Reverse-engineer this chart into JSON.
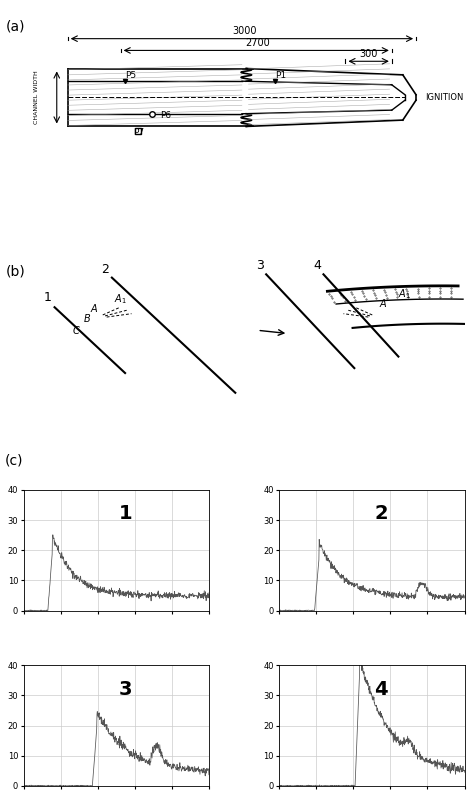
{
  "fig_width": 4.74,
  "fig_height": 8.02,
  "bg_color": "#ffffff",
  "panel_a_label": "(a)",
  "panel_b_label": "(b)",
  "panel_c_label": "(c)",
  "dim_3000": "3000",
  "dim_2700": "2700",
  "dim_300": "300",
  "label_P5": "P5",
  "label_P1": "P1",
  "label_P6": "P6",
  "label_P7": "P7",
  "label_ignition": "IGNITION",
  "label_channel_width": "CHANNEL WIDTH",
  "plot_labels": [
    "1",
    "2",
    "3",
    "4"
  ],
  "ylim": [
    0,
    40
  ],
  "yticks": [
    0,
    10,
    20,
    30,
    40
  ],
  "grid_color": "#cccccc",
  "line_color": "#555555"
}
